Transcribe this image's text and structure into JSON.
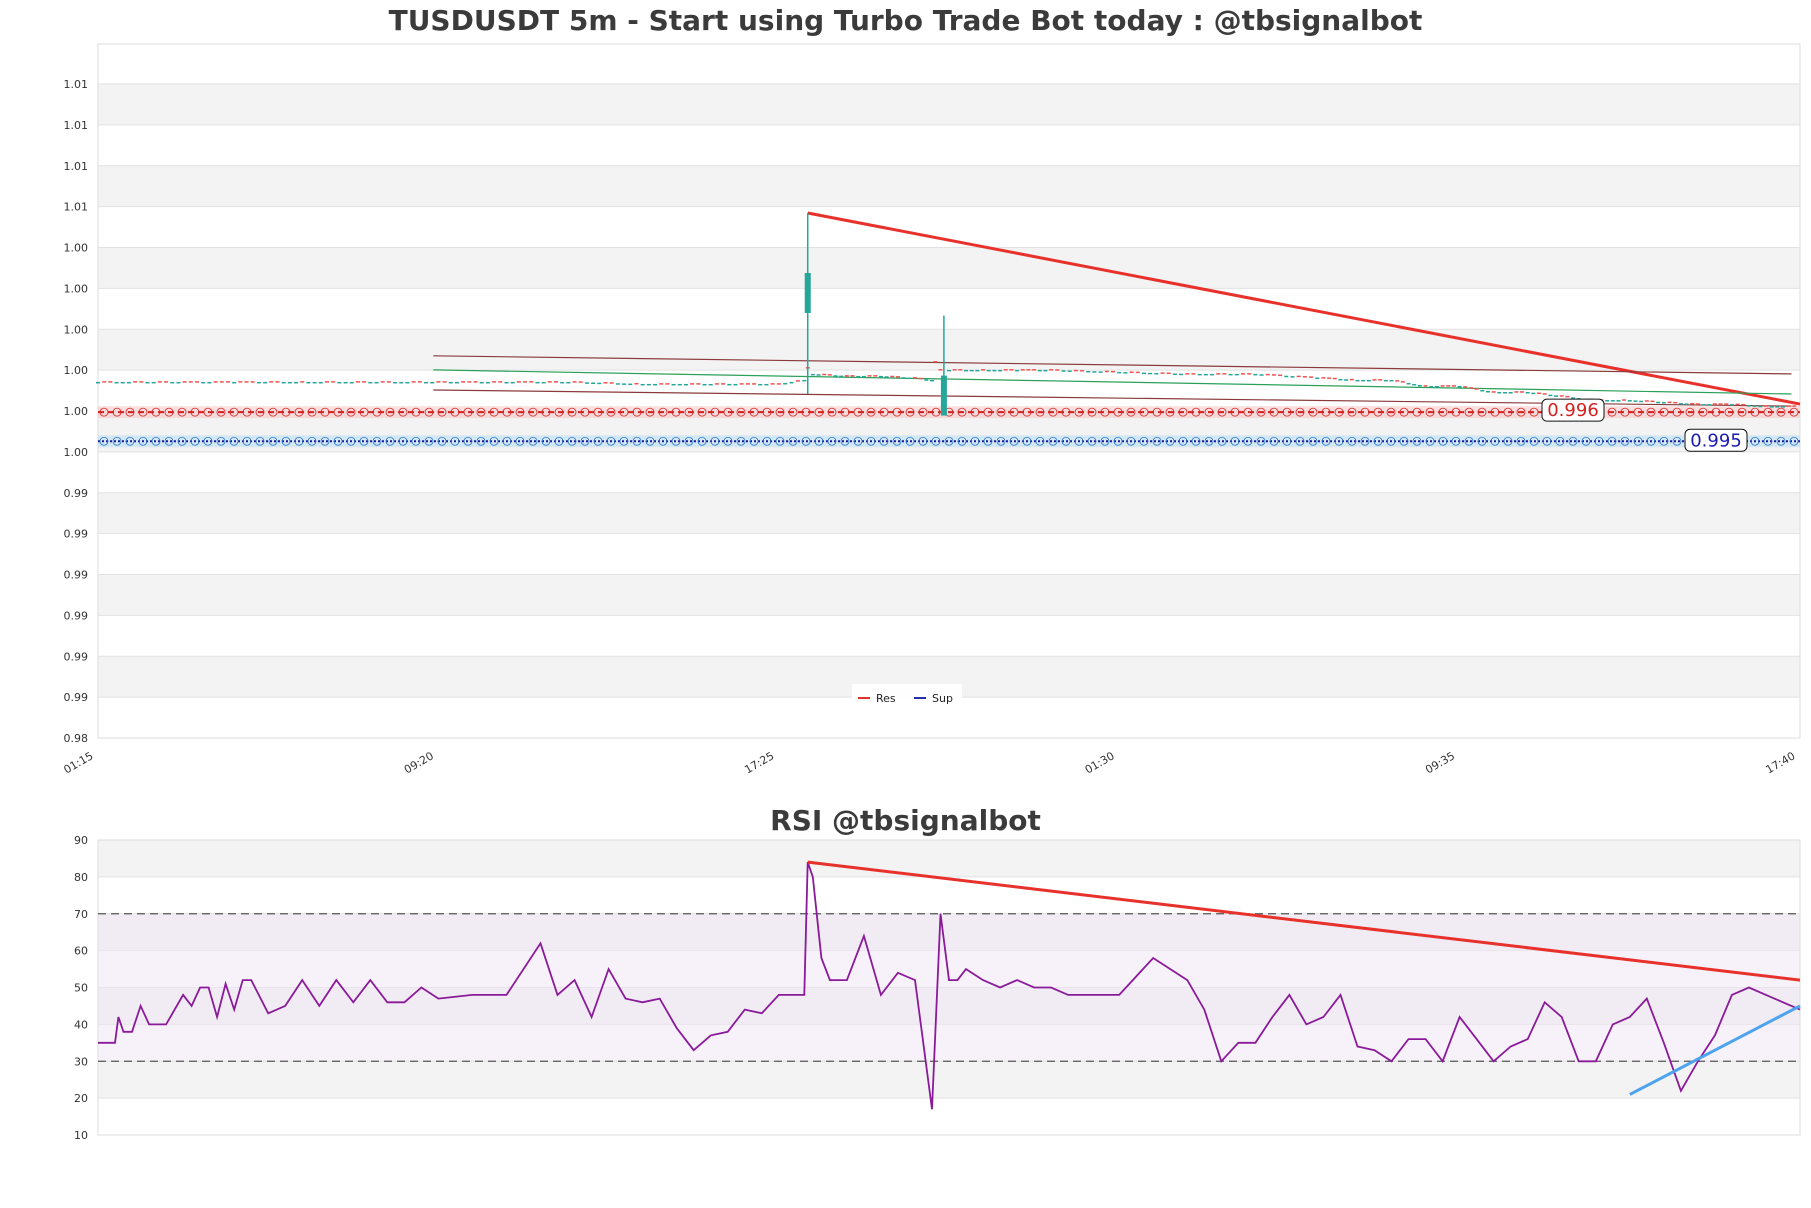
{
  "chart_data": [
    {
      "type": "candlestick",
      "title": "TUSDUSDT 5m - Start using Turbo Trade Bot today : @tbsignalbot",
      "y_tick_labels": [
        "1.01",
        "1.01",
        "1.01",
        "1.01",
        "1.00",
        "1.00",
        "1.00",
        "1.00",
        "1.00",
        "1.00",
        "0.99",
        "0.99",
        "0.99",
        "0.99",
        "0.99",
        "0.99",
        "0.98"
      ],
      "x_tick_labels": [
        "01:15",
        "09:20",
        "17:25",
        "01:30",
        "09:35",
        "17:40"
      ],
      "ylim": [
        0.98,
        1.0145
      ],
      "grid": true,
      "legend": {
        "placement": "bottom-center",
        "entries": [
          {
            "label": "Res",
            "color": "#e0302a"
          },
          {
            "label": "Sup",
            "color": "#2233aa"
          }
        ]
      },
      "resistance_level": 0.996,
      "support_level": 0.995,
      "price_labels": [
        {
          "text": "0.996",
          "color": "#d61f1f"
        },
        {
          "text": "0.995",
          "color": "#1a1ab0"
        }
      ],
      "price_series": {
        "x": [
          0,
          0.04,
          0.08,
          0.12,
          0.16,
          0.2,
          0.24,
          0.28,
          0.32,
          0.36,
          0.4,
          0.415,
          0.417,
          0.42,
          0.44,
          0.46,
          0.48,
          0.49,
          0.492,
          0.495,
          0.5,
          0.52,
          0.54,
          0.56,
          0.6,
          0.64,
          0.68,
          0.72,
          0.74,
          0.76,
          0.78,
          0.8,
          0.82,
          0.84,
          0.86,
          0.87,
          0.88,
          0.9,
          0.92,
          0.94,
          0.96,
          0.98,
          1.0
        ],
        "close": [
          0.9977,
          0.9977,
          0.9977,
          0.9977,
          0.9977,
          0.9977,
          0.9977,
          0.9977,
          0.9976,
          0.9976,
          0.9976,
          0.9978,
          0.9984,
          0.9981,
          0.998,
          0.998,
          0.9979,
          0.9978,
          0.9987,
          0.9983,
          0.9983,
          0.9983,
          0.9983,
          0.9983,
          0.9982,
          0.9981,
          0.9981,
          0.9979,
          0.9978,
          0.9978,
          0.9975,
          0.9975,
          0.9972,
          0.9972,
          0.997,
          0.9969,
          0.9968,
          0.9968,
          0.9967,
          0.9966,
          0.9966,
          0.9965,
          0.9965
        ],
        "spikes": [
          {
            "x": 0.417,
            "high": 1.0061,
            "low": 0.9971
          },
          {
            "x": 0.497,
            "high": 1.001,
            "low": 0.9972
          }
        ]
      },
      "trendlines": [
        {
          "name": "res-trend",
          "color": "#e8312b",
          "points": [
            [
              0.417,
              1.0061
            ],
            [
              1.0,
              0.9966
            ]
          ]
        },
        {
          "name": "upper-channel",
          "color": "#8a3a3a",
          "points": [
            [
              0.197,
              0.999
            ],
            [
              0.995,
              0.9981
            ]
          ]
        },
        {
          "name": "mid-channel",
          "color": "#2aa05a",
          "points": [
            [
              0.197,
              0.9983
            ],
            [
              0.995,
              0.9971
            ]
          ]
        },
        {
          "name": "lower-channel",
          "color": "#8a3a3a",
          "points": [
            [
              0.197,
              0.9973
            ],
            [
              0.995,
              0.9965
            ]
          ]
        }
      ]
    },
    {
      "type": "line",
      "title": "RSI @tbsignalbot",
      "y_tick_labels": [
        "90",
        "80",
        "70",
        "60",
        "50",
        "40",
        "30",
        "20",
        "10"
      ],
      "ylim": [
        10,
        90
      ],
      "overbought": 70,
      "oversold": 30,
      "grid": true,
      "series": [
        {
          "color": "#8a1a9a",
          "x": [
            0,
            0.01,
            0.012,
            0.015,
            0.02,
            0.025,
            0.03,
            0.04,
            0.05,
            0.055,
            0.06,
            0.065,
            0.07,
            0.075,
            0.08,
            0.085,
            0.09,
            0.1,
            0.11,
            0.12,
            0.13,
            0.14,
            0.15,
            0.16,
            0.17,
            0.18,
            0.19,
            0.2,
            0.22,
            0.24,
            0.26,
            0.27,
            0.28,
            0.29,
            0.3,
            0.31,
            0.32,
            0.33,
            0.34,
            0.35,
            0.36,
            0.37,
            0.38,
            0.39,
            0.4,
            0.41,
            0.415,
            0.417,
            0.42,
            0.425,
            0.43,
            0.44,
            0.45,
            0.46,
            0.47,
            0.48,
            0.49,
            0.495,
            0.5,
            0.505,
            0.51,
            0.52,
            0.53,
            0.54,
            0.55,
            0.56,
            0.57,
            0.58,
            0.59,
            0.6,
            0.62,
            0.64,
            0.65,
            0.66,
            0.67,
            0.68,
            0.69,
            0.7,
            0.71,
            0.72,
            0.73,
            0.74,
            0.75,
            0.76,
            0.77,
            0.78,
            0.79,
            0.8,
            0.81,
            0.82,
            0.83,
            0.84,
            0.85,
            0.86,
            0.87,
            0.88,
            0.89,
            0.9,
            0.91,
            0.92,
            0.93,
            0.94,
            0.95,
            0.96,
            0.97,
            0.98,
            0.99,
            1.0
          ],
          "values": [
            35,
            35,
            42,
            38,
            38,
            45,
            40,
            40,
            48,
            45,
            50,
            50,
            42,
            51,
            44,
            52,
            52,
            43,
            45,
            52,
            45,
            52,
            46,
            52,
            46,
            46,
            50,
            47,
            48,
            48,
            62,
            48,
            52,
            42,
            55,
            47,
            46,
            47,
            39,
            33,
            37,
            38,
            44,
            43,
            48,
            48,
            48,
            84,
            80,
            58,
            52,
            52,
            64,
            48,
            54,
            52,
            17,
            70,
            52,
            52,
            55,
            52,
            50,
            52,
            50,
            50,
            48,
            48,
            48,
            48,
            58,
            52,
            44,
            30,
            35,
            35,
            42,
            48,
            40,
            42,
            48,
            34,
            33,
            30,
            36,
            36,
            30,
            42,
            36,
            30,
            34,
            36,
            46,
            42,
            30,
            30,
            40,
            42,
            47,
            35,
            22,
            30,
            37,
            48,
            50,
            48,
            46,
            44
          ]
        }
      ],
      "trendlines": [
        {
          "name": "rsi-res-trend",
          "color": "#e8312b",
          "points": [
            [
              0.417,
              84
            ],
            [
              1.0,
              52
            ]
          ]
        },
        {
          "name": "rsi-sup-trend",
          "color": "#4da3ee",
          "points": [
            [
              0.9,
              21
            ],
            [
              1.0,
              45
            ]
          ]
        }
      ]
    }
  ]
}
